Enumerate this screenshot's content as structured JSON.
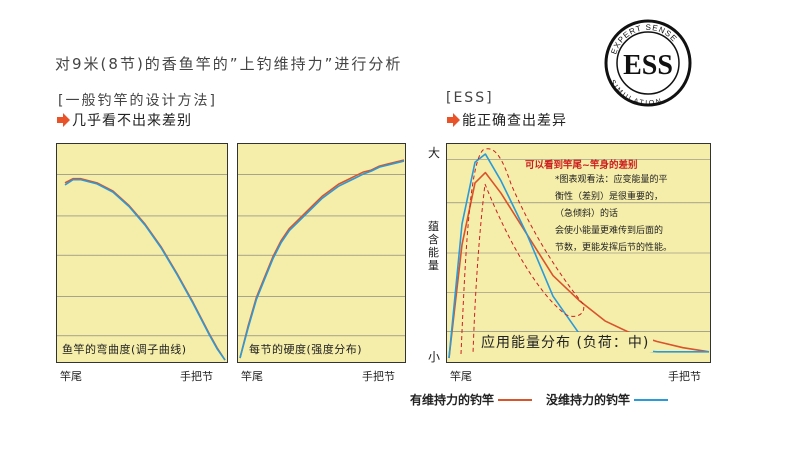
{
  "header": {
    "title": "对9米(8节)的香鱼竿的”上钓维持力”进行分析",
    "left_subtitle": "[一般钓竿的设计方法]",
    "left_point": "几乎看不出来差别",
    "right_subtitle": "[ESS]",
    "right_point": "能正确查出差异"
  },
  "logo": {
    "text": "ESS",
    "ring_top": "EXPERT SENSE",
    "ring_bottom": "SIMULATION"
  },
  "colors": {
    "panel_bg": "#f5eeaa",
    "with_holding": "#d9532b",
    "without_holding": "#2a9ad8",
    "arrow": "#e8532a",
    "annotation": "#cc1f1f"
  },
  "chart_data": [
    {
      "type": "line",
      "caption": "鱼竿的弯曲度(调子曲线)",
      "x_start_label": "竿尾",
      "x_end_label": "手把节",
      "xlim": [
        0,
        1
      ],
      "ylim": [
        0,
        1
      ],
      "grid": true,
      "series": [
        {
          "x": [
            0,
            0.05,
            0.1,
            0.2,
            0.3,
            0.4,
            0.5,
            0.6,
            0.7,
            0.8,
            0.9,
            0.95,
            1.0
          ],
          "values": [
            0.86,
            0.88,
            0.88,
            0.86,
            0.82,
            0.75,
            0.66,
            0.55,
            0.42,
            0.28,
            0.13,
            0.06,
            0.0
          ]
        },
        {
          "x": [
            0,
            0.05,
            0.1,
            0.2,
            0.3,
            0.4,
            0.5,
            0.6,
            0.7,
            0.8,
            0.9,
            0.95,
            1.0
          ],
          "values": [
            0.85,
            0.875,
            0.875,
            0.855,
            0.815,
            0.745,
            0.655,
            0.545,
            0.415,
            0.275,
            0.125,
            0.055,
            0.0
          ]
        }
      ]
    },
    {
      "type": "line",
      "caption": "每节的硬度(强度分布)",
      "x_start_label": "竿尾",
      "x_end_label": "手把节",
      "xlim": [
        0,
        1
      ],
      "ylim": [
        0,
        1
      ],
      "grid": true,
      "series": [
        {
          "x": [
            0,
            0.05,
            0.1,
            0.15,
            0.2,
            0.25,
            0.3,
            0.35,
            0.4,
            0.45,
            0.5,
            0.55,
            0.6,
            0.65,
            0.7,
            0.75,
            0.8,
            0.85,
            0.9,
            0.95,
            1.0
          ],
          "values": [
            0.0,
            0.16,
            0.3,
            0.4,
            0.5,
            0.58,
            0.64,
            0.68,
            0.72,
            0.76,
            0.8,
            0.83,
            0.86,
            0.88,
            0.9,
            0.92,
            0.93,
            0.95,
            0.96,
            0.97,
            0.98
          ]
        },
        {
          "x": [
            0,
            0.05,
            0.1,
            0.15,
            0.2,
            0.25,
            0.3,
            0.35,
            0.4,
            0.45,
            0.5,
            0.55,
            0.6,
            0.65,
            0.7,
            0.75,
            0.8,
            0.85,
            0.9,
            0.95,
            1.0
          ],
          "values": [
            0.0,
            0.15,
            0.29,
            0.39,
            0.49,
            0.57,
            0.63,
            0.67,
            0.71,
            0.75,
            0.79,
            0.82,
            0.85,
            0.87,
            0.89,
            0.91,
            0.925,
            0.945,
            0.955,
            0.965,
            0.975
          ]
        }
      ]
    },
    {
      "type": "line",
      "caption": "应用能量分布 (负荷：中)",
      "x_start_label": "竿尾",
      "x_end_label": "手把节",
      "y_label": "蕴含能量",
      "y_top_label": "大",
      "y_bottom_label": "小",
      "xlim": [
        0,
        1
      ],
      "ylim": [
        0,
        1
      ],
      "grid": true,
      "annotation_title": "可以看到竿尾~竿身的差别",
      "annotation_lines": [
        "*图表观看法：应变能量的平",
        "衡性（差别）是很重要的，",
        "（急倾斜）的话",
        "会使小能量更难传到后面的",
        "节数，更能发挥后节的性能。"
      ],
      "legend": {
        "with_holding": "有维持力的钓竿",
        "without_holding": "没维持力的钓竿"
      },
      "series": [
        {
          "name": "有维持力的钓竿",
          "x": [
            0,
            0.05,
            0.1,
            0.14,
            0.2,
            0.3,
            0.4,
            0.5,
            0.6,
            0.7,
            0.8,
            0.9,
            1.0
          ],
          "values": [
            0.0,
            0.55,
            0.85,
            0.9,
            0.8,
            0.6,
            0.4,
            0.28,
            0.18,
            0.12,
            0.08,
            0.05,
            0.03
          ]
        },
        {
          "name": "没维持力的钓竿",
          "x": [
            0,
            0.05,
            0.1,
            0.14,
            0.2,
            0.3,
            0.4,
            0.5,
            0.6,
            0.7,
            0.8,
            0.9,
            1.0
          ],
          "values": [
            0.0,
            0.65,
            0.95,
            0.99,
            0.86,
            0.6,
            0.3,
            0.12,
            0.06,
            0.04,
            0.03,
            0.03,
            0.03
          ]
        }
      ]
    }
  ]
}
